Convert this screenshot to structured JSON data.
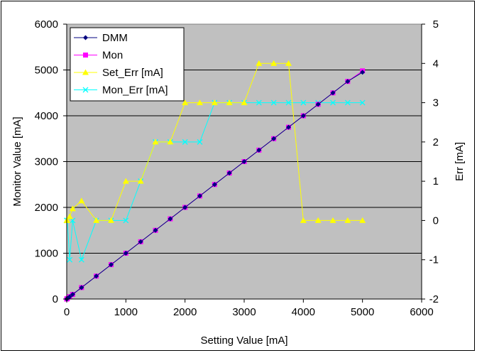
{
  "chart_data": {
    "type": "line",
    "xlabel": "Setting Value [mA]",
    "ylabel": "Monitor Value [mA]",
    "y2label": "Err [mA]",
    "xlim": [
      0,
      6000
    ],
    "ylim": [
      0,
      6000
    ],
    "y2lim": [
      -2,
      5
    ],
    "xticks": [
      0,
      1000,
      2000,
      3000,
      4000,
      5000,
      6000
    ],
    "yticks": [
      0,
      1000,
      2000,
      3000,
      4000,
      5000,
      6000
    ],
    "y2ticks": [
      -2,
      -1,
      0,
      1,
      2,
      3,
      4,
      5
    ],
    "grid": "horizontal",
    "legend_position": "top-left",
    "plot_background": "#c0c0c0",
    "series": [
      {
        "name": "DMM",
        "axis": "left",
        "color": "#000080",
        "marker": "diamond",
        "x": [
          0,
          10,
          50,
          100,
          250,
          500,
          750,
          1000,
          1250,
          1500,
          1750,
          2000,
          2250,
          2500,
          2750,
          3000,
          3250,
          3500,
          3750,
          4000,
          4250,
          4500,
          4750,
          5000
        ],
        "y": [
          0,
          10,
          50,
          100,
          250,
          500,
          750,
          1000,
          1250,
          1500,
          1750,
          2000,
          2250,
          2500,
          2750,
          3000,
          3250,
          3500,
          3750,
          4000,
          4250,
          4500,
          4750,
          4950
        ]
      },
      {
        "name": "Mon",
        "axis": "left",
        "color": "#ff00ff",
        "marker": "square",
        "x": [
          0,
          10,
          50,
          100,
          250,
          500,
          750,
          1000,
          1250,
          1500,
          1750,
          2000,
          2250,
          2500,
          2750,
          3000,
          3250,
          3500,
          3750,
          4000,
          4250,
          4500,
          4750,
          5000
        ],
        "y": [
          0,
          10,
          50,
          100,
          250,
          500,
          750,
          1000,
          1250,
          1500,
          1750,
          2000,
          2250,
          2500,
          2750,
          3000,
          3250,
          3500,
          3750,
          4000,
          4250,
          4500,
          4750,
          4980
        ]
      },
      {
        "name": "Set_Err [mA]",
        "axis": "right",
        "color": "#ffff00",
        "marker": "triangle",
        "x": [
          0,
          10,
          50,
          100,
          250,
          500,
          750,
          1000,
          1250,
          1500,
          1750,
          2000,
          2250,
          2500,
          2750,
          3000,
          3250,
          3500,
          3750,
          4000,
          4250,
          4500,
          4750,
          5000
        ],
        "y": [
          0,
          0,
          0.1,
          0.3,
          0.5,
          0,
          0,
          1,
          1,
          2,
          2,
          3,
          3,
          3,
          3,
          3,
          4,
          4,
          4,
          0,
          0,
          0,
          0,
          0
        ]
      },
      {
        "name": "Mon_Err [mA]",
        "axis": "right",
        "color": "#00ffff",
        "marker": "x",
        "x": [
          0,
          10,
          50,
          100,
          250,
          500,
          750,
          1000,
          1250,
          1500,
          1750,
          2000,
          2250,
          2500,
          2750,
          3000,
          3250,
          3500,
          3750,
          4000,
          4250,
          4500,
          4750,
          5000
        ],
        "y": [
          0,
          0,
          -1,
          0,
          -1,
          0,
          0,
          0,
          1,
          2,
          2,
          2,
          2,
          3,
          3,
          3,
          3,
          3,
          3,
          3,
          3,
          3,
          3,
          3
        ]
      }
    ]
  }
}
